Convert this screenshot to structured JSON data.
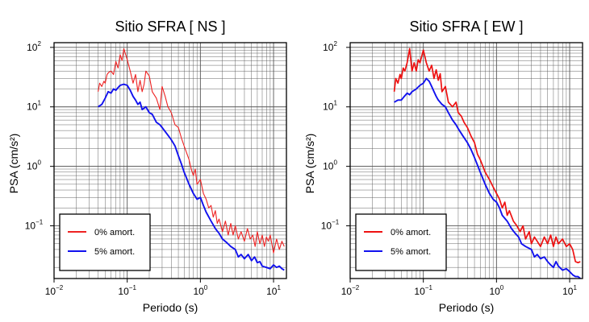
{
  "chart_data": [
    {
      "type": "line",
      "title": "Sitio SFRA [ NS ]",
      "xlabel": "Periodo (s)",
      "ylabel": "PSA (cm/s²)",
      "xscale": "log",
      "yscale": "log",
      "xlim": [
        0.01,
        15
      ],
      "ylim": [
        0.013,
        120
      ],
      "grid": true,
      "legend": "bottom-left",
      "x_ticks": [
        {
          "base": "10",
          "exp": "−2"
        },
        {
          "base": "10",
          "exp": "−1"
        },
        {
          "base": "10",
          "exp": "0"
        },
        {
          "base": "10",
          "exp": "1"
        }
      ],
      "y_ticks": [
        {
          "base": "10",
          "exp": "−1"
        },
        {
          "base": "10",
          "exp": "0"
        },
        {
          "base": "10",
          "exp": "1"
        },
        {
          "base": "10",
          "exp": "2"
        }
      ],
      "series": [
        {
          "name": "0% amort.",
          "color": "#ee2222",
          "points": [
            [
              0.04,
              18
            ],
            [
              0.042,
              25
            ],
            [
              0.045,
              22
            ],
            [
              0.048,
              27
            ],
            [
              0.05,
              25
            ],
            [
              0.053,
              35
            ],
            [
              0.056,
              38
            ],
            [
              0.06,
              40
            ],
            [
              0.065,
              35
            ],
            [
              0.07,
              58
            ],
            [
              0.075,
              45
            ],
            [
              0.08,
              75
            ],
            [
              0.085,
              60
            ],
            [
              0.09,
              95
            ],
            [
              0.1,
              62
            ],
            [
              0.11,
              40
            ],
            [
              0.12,
              25
            ],
            [
              0.13,
              35
            ],
            [
              0.14,
              18
            ],
            [
              0.15,
              28
            ],
            [
              0.16,
              18
            ],
            [
              0.17,
              24
            ],
            [
              0.18,
              40
            ],
            [
              0.2,
              33
            ],
            [
              0.22,
              18
            ],
            [
              0.25,
              14
            ],
            [
              0.28,
              9
            ],
            [
              0.3,
              22
            ],
            [
              0.33,
              15
            ],
            [
              0.36,
              10
            ],
            [
              0.4,
              8
            ],
            [
              0.45,
              5
            ],
            [
              0.5,
              4.5
            ],
            [
              0.55,
              3
            ],
            [
              0.6,
              2.2
            ],
            [
              0.7,
              1.3
            ],
            [
              0.75,
              0.9
            ],
            [
              0.8,
              0.7
            ],
            [
              0.85,
              0.9
            ],
            [
              0.9,
              0.5
            ],
            [
              1,
              0.6
            ],
            [
              1.1,
              0.35
            ],
            [
              1.2,
              0.28
            ],
            [
              1.3,
              0.2
            ],
            [
              1.4,
              0.22
            ],
            [
              1.5,
              0.14
            ],
            [
              1.6,
              0.18
            ],
            [
              1.7,
              0.11
            ],
            [
              1.8,
              0.13
            ],
            [
              2,
              0.08
            ],
            [
              2.2,
              0.12
            ],
            [
              2.4,
              0.07
            ],
            [
              2.6,
              0.11
            ],
            [
              2.8,
              0.07
            ],
            [
              3,
              0.1
            ],
            [
              3.3,
              0.06
            ],
            [
              3.6,
              0.08
            ],
            [
              4,
              0.055
            ],
            [
              4.4,
              0.09
            ],
            [
              4.8,
              0.06
            ],
            [
              5.2,
              0.07
            ],
            [
              5.6,
              0.045
            ],
            [
              6,
              0.08
            ],
            [
              6.5,
              0.05
            ],
            [
              7,
              0.07
            ],
            [
              7.5,
              0.045
            ],
            [
              8,
              0.065
            ],
            [
              8.5,
              0.055
            ],
            [
              9,
              0.07
            ],
            [
              10,
              0.035
            ],
            [
              11,
              0.06
            ],
            [
              12,
              0.04
            ],
            [
              13,
              0.055
            ],
            [
              14,
              0.045
            ]
          ]
        },
        {
          "name": "5% amort.",
          "color": "#1111ee",
          "points": [
            [
              0.04,
              10
            ],
            [
              0.045,
              11
            ],
            [
              0.05,
              14
            ],
            [
              0.055,
              18
            ],
            [
              0.06,
              17
            ],
            [
              0.065,
              20
            ],
            [
              0.07,
              19
            ],
            [
              0.075,
              21
            ],
            [
              0.08,
              23
            ],
            [
              0.09,
              24
            ],
            [
              0.1,
              23
            ],
            [
              0.11,
              19
            ],
            [
              0.12,
              15
            ],
            [
              0.13,
              13
            ],
            [
              0.14,
              11
            ],
            [
              0.15,
              12
            ],
            [
              0.16,
              9
            ],
            [
              0.18,
              10
            ],
            [
              0.2,
              8
            ],
            [
              0.22,
              7.5
            ],
            [
              0.25,
              5.5
            ],
            [
              0.28,
              5
            ],
            [
              0.3,
              4.5
            ],
            [
              0.35,
              3.5
            ],
            [
              0.4,
              2.8
            ],
            [
              0.45,
              2.2
            ],
            [
              0.5,
              1.5
            ],
            [
              0.55,
              1.1
            ],
            [
              0.6,
              0.8
            ],
            [
              0.7,
              0.5
            ],
            [
              0.8,
              0.35
            ],
            [
              0.9,
              0.28
            ],
            [
              1,
              0.3
            ],
            [
              1.1,
              0.22
            ],
            [
              1.2,
              0.17
            ],
            [
              1.4,
              0.12
            ],
            [
              1.6,
              0.09
            ],
            [
              1.8,
              0.075
            ],
            [
              2,
              0.06
            ],
            [
              2.3,
              0.052
            ],
            [
              2.6,
              0.045
            ],
            [
              3,
              0.04
            ],
            [
              3.3,
              0.03
            ],
            [
              3.6,
              0.033
            ],
            [
              4,
              0.028
            ],
            [
              4.5,
              0.033
            ],
            [
              5,
              0.026
            ],
            [
              5.5,
              0.03
            ],
            [
              6,
              0.024
            ],
            [
              6.5,
              0.025
            ],
            [
              7,
              0.021
            ],
            [
              8,
              0.02
            ],
            [
              9,
              0.019
            ],
            [
              10,
              0.022
            ],
            [
              11,
              0.02
            ],
            [
              12,
              0.021
            ],
            [
              13,
              0.019
            ],
            [
              14,
              0.018
            ]
          ]
        }
      ]
    },
    {
      "type": "line",
      "title": "Sitio SFRA [ EW ]",
      "xlabel": "Periodo (s)",
      "ylabel": "PSA (cm/s²)",
      "xscale": "log",
      "yscale": "log",
      "xlim": [
        0.01,
        15
      ],
      "ylim": [
        0.013,
        120
      ],
      "grid": true,
      "legend": "bottom-left",
      "x_ticks": [
        {
          "base": "10",
          "exp": "−2"
        },
        {
          "base": "10",
          "exp": "−1"
        },
        {
          "base": "10",
          "exp": "0"
        },
        {
          "base": "10",
          "exp": "1"
        }
      ],
      "y_ticks": [
        {
          "base": "10",
          "exp": "−1"
        },
        {
          "base": "10",
          "exp": "0"
        },
        {
          "base": "10",
          "exp": "1"
        },
        {
          "base": "10",
          "exp": "2"
        }
      ],
      "series": [
        {
          "name": "0% amort.",
          "color": "#ee1111",
          "points": [
            [
              0.04,
              18
            ],
            [
              0.042,
              30
            ],
            [
              0.045,
              25
            ],
            [
              0.048,
              35
            ],
            [
              0.05,
              30
            ],
            [
              0.053,
              45
            ],
            [
              0.056,
              40
            ],
            [
              0.06,
              55
            ],
            [
              0.065,
              95
            ],
            [
              0.07,
              40
            ],
            [
              0.075,
              55
            ],
            [
              0.08,
              40
            ],
            [
              0.085,
              62
            ],
            [
              0.09,
              55
            ],
            [
              0.1,
              90
            ],
            [
              0.11,
              55
            ],
            [
              0.12,
              40
            ],
            [
              0.13,
              50
            ],
            [
              0.14,
              30
            ],
            [
              0.15,
              42
            ],
            [
              0.16,
              28
            ],
            [
              0.17,
              36
            ],
            [
              0.18,
              18
            ],
            [
              0.2,
              22
            ],
            [
              0.22,
              12
            ],
            [
              0.25,
              10
            ],
            [
              0.28,
              12
            ],
            [
              0.3,
              8
            ],
            [
              0.33,
              7
            ],
            [
              0.36,
              5.5
            ],
            [
              0.4,
              4.5
            ],
            [
              0.45,
              3.2
            ],
            [
              0.5,
              2.5
            ],
            [
              0.55,
              1.6
            ],
            [
              0.6,
              1.3
            ],
            [
              0.7,
              0.8
            ],
            [
              0.8,
              0.6
            ],
            [
              0.9,
              0.45
            ],
            [
              1,
              0.35
            ],
            [
              1.1,
              0.28
            ],
            [
              1.2,
              0.2
            ],
            [
              1.3,
              0.25
            ],
            [
              1.4,
              0.15
            ],
            [
              1.5,
              0.18
            ],
            [
              1.7,
              0.12
            ],
            [
              1.9,
              0.1
            ],
            [
              2.1,
              0.08
            ],
            [
              2.3,
              0.1
            ],
            [
              2.5,
              0.06
            ],
            [
              2.8,
              0.08
            ],
            [
              3,
              0.05
            ],
            [
              3.3,
              0.065
            ],
            [
              3.6,
              0.055
            ],
            [
              4,
              0.045
            ],
            [
              4.5,
              0.065
            ],
            [
              5,
              0.05
            ],
            [
              5.5,
              0.07
            ],
            [
              6,
              0.045
            ],
            [
              6.5,
              0.065
            ],
            [
              7,
              0.05
            ],
            [
              8,
              0.06
            ],
            [
              9,
              0.045
            ],
            [
              10,
              0.05
            ],
            [
              11,
              0.04
            ],
            [
              12,
              0.025
            ],
            [
              13,
              0.024
            ],
            [
              14,
              0.025
            ]
          ]
        },
        {
          "name": "5% amort.",
          "color": "#1111ee",
          "points": [
            [
              0.04,
              12
            ],
            [
              0.045,
              13
            ],
            [
              0.05,
              13
            ],
            [
              0.055,
              15
            ],
            [
              0.06,
              17
            ],
            [
              0.065,
              16
            ],
            [
              0.07,
              18
            ],
            [
              0.08,
              20
            ],
            [
              0.09,
              23
            ],
            [
              0.1,
              25
            ],
            [
              0.11,
              30
            ],
            [
              0.12,
              27
            ],
            [
              0.13,
              22
            ],
            [
              0.14,
              18
            ],
            [
              0.15,
              15
            ],
            [
              0.16,
              13
            ],
            [
              0.18,
              11
            ],
            [
              0.2,
              10
            ],
            [
              0.22,
              8
            ],
            [
              0.25,
              6
            ],
            [
              0.28,
              5
            ],
            [
              0.3,
              4.3
            ],
            [
              0.35,
              3.2
            ],
            [
              0.4,
              2.5
            ],
            [
              0.45,
              1.9
            ],
            [
              0.5,
              1.4
            ],
            [
              0.55,
              1.05
            ],
            [
              0.6,
              0.8
            ],
            [
              0.7,
              0.5
            ],
            [
              0.8,
              0.35
            ],
            [
              0.9,
              0.28
            ],
            [
              1,
              0.25
            ],
            [
              1.1,
              0.2
            ],
            [
              1.2,
              0.15
            ],
            [
              1.4,
              0.12
            ],
            [
              1.6,
              0.09
            ],
            [
              1.8,
              0.075
            ],
            [
              2,
              0.065
            ],
            [
              2.2,
              0.05
            ],
            [
              2.5,
              0.045
            ],
            [
              3,
              0.04
            ],
            [
              3.3,
              0.03
            ],
            [
              3.6,
              0.033
            ],
            [
              4,
              0.028
            ],
            [
              4.5,
              0.03
            ],
            [
              5,
              0.025
            ],
            [
              5.5,
              0.022
            ],
            [
              6,
              0.02
            ],
            [
              6.5,
              0.025
            ],
            [
              7,
              0.021
            ],
            [
              8,
              0.018
            ],
            [
              9,
              0.019
            ],
            [
              10,
              0.017
            ],
            [
              11,
              0.015
            ],
            [
              12,
              0.014
            ],
            [
              13,
              0.014
            ],
            [
              14,
              0.013
            ]
          ]
        }
      ]
    }
  ]
}
